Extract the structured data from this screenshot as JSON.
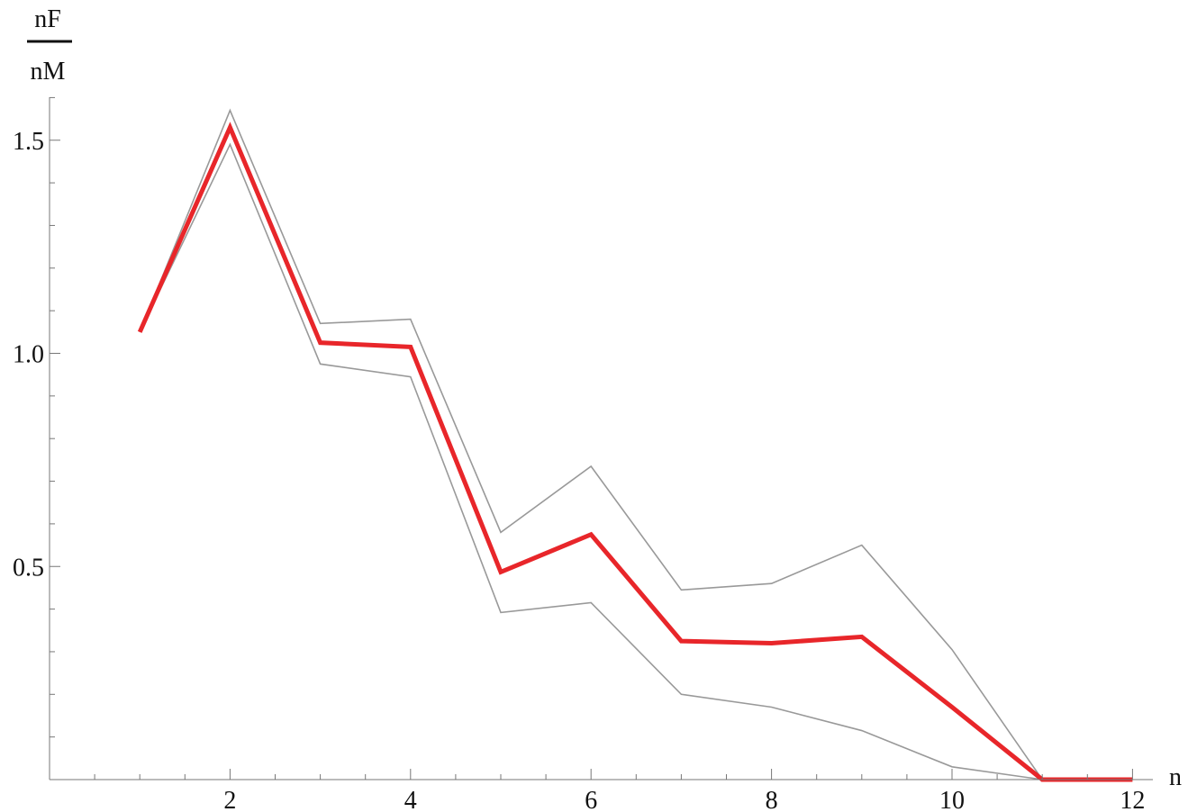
{
  "chart_data": {
    "type": "line",
    "title": "",
    "xlabel": "n",
    "ylabel_numerator": "nF",
    "ylabel_denominator": "nM",
    "xlim": [
      0,
      12.2
    ],
    "ylim": [
      0,
      1.6
    ],
    "x_major_ticks": [
      2,
      4,
      6,
      8,
      10,
      12
    ],
    "x_tick_labels": [
      "2",
      "4",
      "6",
      "8",
      "10",
      "12"
    ],
    "y_major_ticks": [
      0.5,
      1.0,
      1.5
    ],
    "y_tick_labels": [
      "0.5",
      "1.0",
      "1.5"
    ],
    "grid": false,
    "x": [
      1,
      2,
      3,
      4,
      5,
      6,
      7,
      8,
      9,
      10,
      11,
      12
    ],
    "series": [
      {
        "color": "#e8262a",
        "values": [
          1.05,
          1.53,
          1.025,
          1.015,
          0.487,
          0.575,
          0.325,
          0.32,
          0.335,
          0.17,
          0.0,
          0.0
        ]
      },
      {
        "color": "#999999",
        "values": [
          1.05,
          1.57,
          1.07,
          1.08,
          0.58,
          0.735,
          0.445,
          0.46,
          0.55,
          0.305,
          0.0,
          0.0
        ]
      },
      {
        "color": "#999999",
        "values": [
          1.05,
          1.49,
          0.975,
          0.945,
          0.392,
          0.415,
          0.2,
          0.17,
          0.115,
          0.03,
          0.0,
          0.0
        ]
      }
    ]
  }
}
